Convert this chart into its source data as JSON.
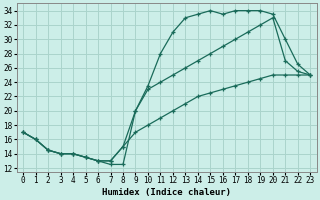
{
  "xlabel": "Humidex (Indice chaleur)",
  "bg_color": "#cceee8",
  "grid_color": "#aad4cc",
  "line_color": "#1a6b5a",
  "xlim": [
    -0.5,
    23.5
  ],
  "ylim": [
    11.5,
    35
  ],
  "yticks": [
    12,
    14,
    16,
    18,
    20,
    22,
    24,
    26,
    28,
    30,
    32,
    34
  ],
  "xticks": [
    0,
    1,
    2,
    3,
    4,
    5,
    6,
    7,
    8,
    9,
    10,
    11,
    12,
    13,
    14,
    15,
    16,
    17,
    18,
    19,
    20,
    21,
    22,
    23
  ],
  "line1_x": [
    0,
    1,
    2,
    3,
    4,
    5,
    6,
    7,
    8,
    9,
    10,
    11,
    12,
    13,
    14,
    15,
    16,
    17,
    18,
    19,
    20,
    21,
    22,
    23
  ],
  "line1_y": [
    17,
    16,
    14.5,
    14,
    14,
    13.5,
    13,
    12.5,
    12.5,
    20,
    23.5,
    28,
    31,
    33,
    33.5,
    34,
    33.5,
    34,
    34,
    34,
    33.5,
    30,
    26.5,
    25
  ],
  "line2_x": [
    0,
    1,
    2,
    3,
    4,
    5,
    6,
    7,
    8,
    9,
    10,
    11,
    12,
    13,
    14,
    15,
    16,
    17,
    18,
    19,
    20,
    21,
    22,
    23
  ],
  "line2_y": [
    17,
    16,
    14.5,
    14,
    14,
    13.5,
    13,
    13,
    15,
    20,
    23,
    24,
    25,
    26,
    27,
    28,
    29,
    30,
    31,
    32,
    33,
    27,
    25.5,
    25
  ],
  "line3_x": [
    0,
    1,
    2,
    3,
    4,
    5,
    6,
    7,
    8,
    9,
    10,
    11,
    12,
    13,
    14,
    15,
    16,
    17,
    18,
    19,
    20,
    21,
    22,
    23
  ],
  "line3_y": [
    17,
    16,
    14.5,
    14,
    14,
    13.5,
    13,
    13,
    15,
    17,
    18,
    19,
    20,
    21,
    22,
    22.5,
    23,
    23.5,
    24,
    24.5,
    25,
    25,
    25,
    25
  ]
}
